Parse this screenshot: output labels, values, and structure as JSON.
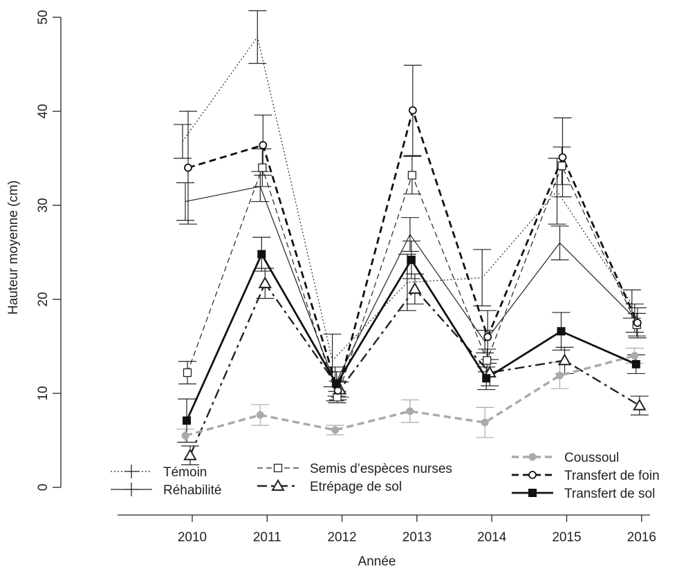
{
  "chart_data": {
    "type": "line",
    "xlabel": "Année",
    "ylabel": "Hauteur moyenne (cm)",
    "categories": [
      "2010",
      "2011",
      "2012",
      "2013",
      "2014",
      "2015",
      "2016"
    ],
    "x": [
      2010,
      2011,
      2012,
      2013,
      2014,
      2015,
      2016
    ],
    "yticks": [
      0,
      10,
      20,
      30,
      40,
      50
    ],
    "ylim": [
      0,
      52
    ],
    "grid": false,
    "legend_position": "bottom",
    "series": [
      {
        "name": "Témoin",
        "marker": "plus",
        "dash": "dotted",
        "width": 1.2,
        "color": "#222222",
        "values": [
          36.8,
          47.9,
          13.5,
          21.8,
          22.3,
          31.5,
          19.5
        ],
        "error": [
          1.8,
          2.8,
          2.8,
          3.0,
          3.0,
          3.5,
          1.5
        ]
      },
      {
        "name": "Réhabilité",
        "marker": "plus",
        "dash": "solid",
        "width": 1.2,
        "color": "#222222",
        "values": [
          30.4,
          32.0,
          11.0,
          26.9,
          15.5,
          26.0,
          18.0
        ],
        "error": [
          2.0,
          1.6,
          1.8,
          1.8,
          1.2,
          1.8,
          1.5
        ]
      },
      {
        "name": "Semis d’espèces nurses",
        "marker": "square-open",
        "dash": "dashed",
        "width": 1.2,
        "color": "#222222",
        "values": [
          12.2,
          34.0,
          9.6,
          33.2,
          13.5,
          34.2,
          17.3
        ],
        "error": [
          1.2,
          2.0,
          0.6,
          2.0,
          1.2,
          2.0,
          1.2
        ]
      },
      {
        "name": "Etrépage de sol",
        "marker": "triangle-open",
        "dash": "dashdot",
        "width": 2.4,
        "color": "#222222",
        "values": [
          3.4,
          21.7,
          10.4,
          21.1,
          12.2,
          13.5,
          8.7
        ],
        "error": [
          1.0,
          1.6,
          0.8,
          1.6,
          1.4,
          1.4,
          1.0
        ]
      },
      {
        "name": "Coussoul",
        "marker": "circle-filled",
        "dash": "dashed",
        "width": 3.5,
        "color": "#aaaaaa",
        "values": [
          5.5,
          7.7,
          6.1,
          8.1,
          6.9,
          11.9,
          14.0
        ],
        "error": [
          0.7,
          1.1,
          0.5,
          1.2,
          1.6,
          1.4,
          0.8
        ]
      },
      {
        "name": "Transfert de foin",
        "marker": "circle-open",
        "dash": "dashed",
        "width": 2.8,
        "color": "#111111",
        "values": [
          34.0,
          36.4,
          10.3,
          40.1,
          16.0,
          35.1,
          17.5
        ],
        "error": [
          6.0,
          3.2,
          1.0,
          4.8,
          2.8,
          4.2,
          1.6
        ]
      },
      {
        "name": "Transfert de sol",
        "marker": "square-filled",
        "dash": "solid",
        "width": 2.8,
        "color": "#111111",
        "values": [
          7.1,
          24.8,
          11.0,
          24.2,
          11.6,
          16.6,
          13.1
        ],
        "error": [
          2.3,
          1.8,
          1.3,
          2.0,
          1.2,
          2.0,
          1.0
        ]
      }
    ],
    "legend": {
      "col1": [
        "Témoin",
        "Réhabilité"
      ],
      "col2": [
        "Semis d’espèces nurses",
        "Etrépage de sol"
      ],
      "col3": [
        "Coussoul",
        "Transfert de foin",
        "Transfert de sol"
      ]
    }
  }
}
